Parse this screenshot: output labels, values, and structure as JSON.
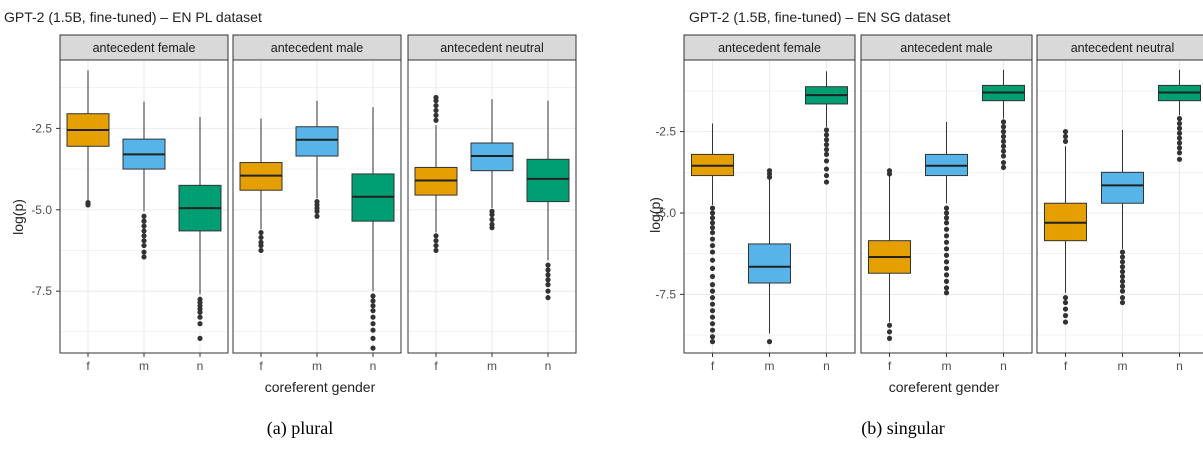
{
  "captions": [
    "(a) plural",
    "(b) singular"
  ],
  "chart_data": [
    {
      "type": "box",
      "title": "GPT-2 (1.5B, fine-tuned) – EN PL dataset",
      "xlabel": "coreferent gender",
      "ylabel": "log(p)",
      "ylim": [
        -9.4,
        -0.4
      ],
      "yticks": [
        -2.5,
        -5.0,
        -7.5
      ],
      "ytick_labels": [
        "-2.5",
        "-5.0",
        "-7.5"
      ],
      "categories": [
        "f",
        "m",
        "n"
      ],
      "grid": true,
      "colors": {
        "f": "#E69F00",
        "m": "#56B4E9",
        "n": "#009E73"
      },
      "facets": [
        {
          "label": "antecedent female",
          "boxes": [
            {
              "cat": "f",
              "whislo": -4.7,
              "q1": -3.05,
              "med": -2.55,
              "q3": -2.05,
              "whishi": -0.72,
              "outliers": [
                -4.78,
                -4.85
              ]
            },
            {
              "cat": "m",
              "whislo": -5.05,
              "q1": -3.75,
              "med": -3.3,
              "q3": -2.83,
              "whishi": -1.68,
              "outliers": [
                -5.2,
                -5.35,
                -5.5,
                -5.65,
                -5.8,
                -5.95,
                -6.1,
                -6.3,
                -6.45
              ]
            },
            {
              "cat": "n",
              "whislo": -7.6,
              "q1": -5.65,
              "med": -4.95,
              "q3": -4.25,
              "whishi": -2.15,
              "outliers": [
                -7.75,
                -7.85,
                -7.95,
                -8.05,
                -8.15,
                -8.3,
                -8.5,
                -8.95
              ]
            }
          ]
        },
        {
          "label": "antecedent male",
          "boxes": [
            {
              "cat": "f",
              "whislo": -5.6,
              "q1": -4.4,
              "med": -3.95,
              "q3": -3.55,
              "whishi": -2.2,
              "outliers": [
                -5.7,
                -5.85,
                -6.0,
                -6.1,
                -6.25
              ]
            },
            {
              "cat": "m",
              "whislo": -4.65,
              "q1": -3.35,
              "med": -2.85,
              "q3": -2.45,
              "whishi": -1.65,
              "outliers": [
                -4.75,
                -4.85,
                -4.95,
                -5.05,
                -5.2
              ]
            },
            {
              "cat": "n",
              "whislo": -7.5,
              "q1": -5.35,
              "med": -4.6,
              "q3": -3.9,
              "whishi": -1.85,
              "outliers": [
                -7.65,
                -7.8,
                -7.95,
                -8.1,
                -8.3,
                -8.5,
                -8.7,
                -8.95,
                -9.25
              ]
            }
          ]
        },
        {
          "label": "antecedent neutral",
          "boxes": [
            {
              "cat": "f",
              "whislo": -5.7,
              "q1": -4.55,
              "med": -4.1,
              "q3": -3.7,
              "whishi": -2.4,
              "outliers": [
                -1.55,
                -1.65,
                -1.8,
                -1.95,
                -2.1,
                -2.25,
                -5.8,
                -5.95,
                -6.1,
                -6.25
              ]
            },
            {
              "cat": "m",
              "whislo": -4.95,
              "q1": -3.8,
              "med": -3.35,
              "q3": -2.95,
              "whishi": -1.6,
              "outliers": [
                -5.05,
                -5.15,
                -5.3,
                -5.45,
                -5.55
              ]
            },
            {
              "cat": "n",
              "whislo": -6.55,
              "q1": -4.75,
              "med": -4.05,
              "q3": -3.45,
              "whishi": -1.65,
              "outliers": [
                -6.7,
                -6.85,
                -7.0,
                -7.15,
                -7.3,
                -7.5,
                -7.7
              ]
            }
          ]
        }
      ]
    },
    {
      "type": "box",
      "title": "GPT-2 (1.5B, fine-tuned) – EN SG dataset",
      "xlabel": "coreferent gender",
      "ylabel": "log(p)",
      "ylim": [
        -9.3,
        -0.3
      ],
      "yticks": [
        -2.5,
        -5.0,
        -7.5
      ],
      "ytick_labels": [
        "-2.5",
        "-5.0",
        "-7.5"
      ],
      "categories": [
        "f",
        "m",
        "n"
      ],
      "grid": true,
      "colors": {
        "f": "#E69F00",
        "m": "#56B4E9",
        "n": "#009E73"
      },
      "facets": [
        {
          "label": "antecedent female",
          "boxes": [
            {
              "cat": "f",
              "whislo": -4.75,
              "q1": -3.85,
              "med": -3.55,
              "q3": -3.2,
              "whishi": -2.25,
              "outliers": [
                -4.85,
                -5.0,
                -5.15,
                -5.3,
                -5.45,
                -5.6,
                -5.8,
                -6.0,
                -6.2,
                -6.45,
                -6.7,
                -6.95,
                -7.2,
                -7.4,
                -7.6,
                -7.8,
                -8.0,
                -8.2,
                -8.4,
                -8.6,
                -8.8,
                -8.95
              ]
            },
            {
              "cat": "m",
              "whislo": -8.7,
              "q1": -7.15,
              "med": -6.65,
              "q3": -5.95,
              "whishi": -3.95,
              "outliers": [
                -3.7,
                -3.8,
                -3.9,
                -8.95
              ]
            },
            {
              "cat": "n",
              "whislo": -2.35,
              "q1": -1.65,
              "med": -1.38,
              "q3": -1.12,
              "whishi": -0.65,
              "outliers": [
                -2.45,
                -2.6,
                -2.75,
                -2.9,
                -3.05,
                -3.2,
                -3.4,
                -3.65,
                -3.85,
                -4.05
              ]
            }
          ]
        },
        {
          "label": "antecedent male",
          "boxes": [
            {
              "cat": "f",
              "whislo": -8.35,
              "q1": -6.85,
              "med": -6.35,
              "q3": -5.85,
              "whishi": -3.85,
              "outliers": [
                -3.7,
                -3.8,
                -8.45,
                -8.65,
                -8.85
              ]
            },
            {
              "cat": "m",
              "whislo": -4.7,
              "q1": -3.85,
              "med": -3.55,
              "q3": -3.2,
              "whishi": -2.2,
              "outliers": [
                -4.85,
                -5.0,
                -5.15,
                -5.3,
                -5.5,
                -5.7,
                -5.9,
                -6.1,
                -6.3,
                -6.5,
                -6.7,
                -6.9,
                -7.1,
                -7.3,
                -7.45
              ]
            },
            {
              "cat": "n",
              "whislo": -2.1,
              "q1": -1.55,
              "med": -1.3,
              "q3": -1.08,
              "whishi": -0.6,
              "outliers": [
                -2.2,
                -2.35,
                -2.5,
                -2.65,
                -2.8,
                -2.95,
                -3.1,
                -3.25,
                -3.45,
                -3.6
              ]
            }
          ]
        },
        {
          "label": "antecedent neutral",
          "boxes": [
            {
              "cat": "f",
              "whislo": -7.45,
              "q1": -5.85,
              "med": -5.3,
              "q3": -4.7,
              "whishi": -2.95,
              "outliers": [
                -2.5,
                -2.65,
                -2.8,
                -7.6,
                -7.75,
                -7.95,
                -8.15,
                -8.35
              ]
            },
            {
              "cat": "m",
              "whislo": -6.1,
              "q1": -4.7,
              "med": -4.15,
              "q3": -3.75,
              "whishi": -2.45,
              "outliers": [
                -6.2,
                -6.35,
                -6.5,
                -6.65,
                -6.8,
                -6.95,
                -7.1,
                -7.25,
                -7.4,
                -7.6,
                -7.75
              ]
            },
            {
              "cat": "n",
              "whislo": -2.0,
              "q1": -1.55,
              "med": -1.3,
              "q3": -1.08,
              "whishi": -0.6,
              "outliers": [
                -2.1,
                -2.25,
                -2.4,
                -2.55,
                -2.7,
                -2.85,
                -3.0,
                -3.15,
                -3.35
              ]
            }
          ]
        }
      ]
    }
  ]
}
